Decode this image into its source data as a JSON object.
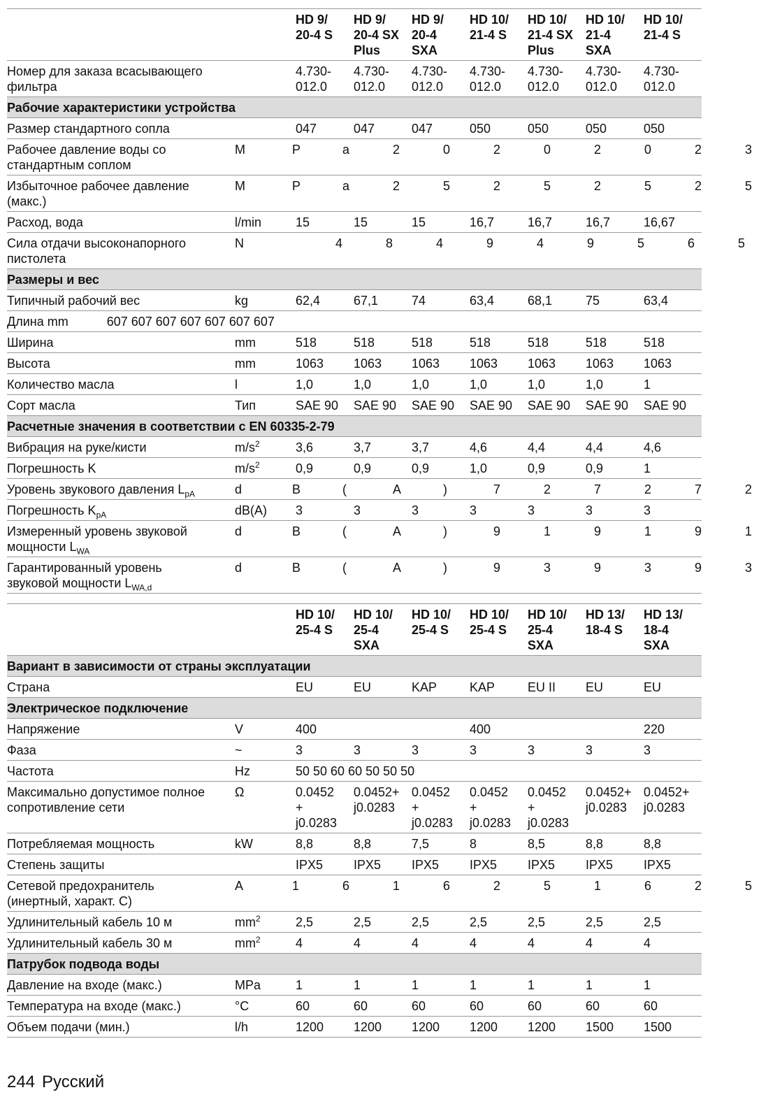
{
  "tables": [
    {
      "header": [
        "HD 9/\n20-4 S",
        "HD 9/\n20-4 SX\nPlus",
        "HD 9/\n20-4\nSXA",
        "HD 10/\n21-4 S",
        "HD 10/\n21-4 SX\nPlus",
        "HD 10/\n21-4\nSXA",
        "HD 10/\n21-4 S"
      ],
      "rows": [
        {
          "label": "Номер для заказа всасывающего\nфильтра",
          "values": [
            "4.730-\n012.0",
            "4.730-\n012.0",
            "4.730-\n012.0",
            "4.730-\n012.0",
            "4.730-\n012.0",
            "4.730-\n012.0",
            "4.730-\n012.0"
          ]
        },
        {
          "section": "Рабочие характеристики устройства"
        },
        {
          "label": "Размер стандартного сопла",
          "values": [
            "047",
            "047",
            "047",
            "050",
            "050",
            "050",
            "050"
          ]
        },
        {
          "label": "Рабочее давление воды со\nстандартным соплом",
          "spread": [
            "M",
            "P",
            "a",
            "2",
            "0",
            "2",
            "0",
            "2",
            "0",
            "2",
            "3"
          ]
        },
        {
          "label": "Избыточное рабочее давление\n(макс.)",
          "spread": [
            "M",
            "P",
            "a",
            "2",
            "5",
            "2",
            "5",
            "2",
            "5",
            "2",
            "5"
          ]
        },
        {
          "label": "Расход, вода",
          "unit": "l/min",
          "values": [
            "15",
            "15",
            "15",
            "16,7",
            "16,7",
            "16,7",
            "16,67"
          ]
        },
        {
          "label": "Сила отдачи высоконапорного\nпистолета",
          "spread": [
            "N",
            "4",
            "8",
            "4",
            "9",
            "4",
            "9",
            "5",
            "6",
            "5"
          ]
        },
        {
          "section": "Размеры и вес"
        },
        {
          "label": "Типичный рабочий вес",
          "unit": "kg",
          "values": [
            "62,4",
            "67,1",
            "74",
            "63,4",
            "68,1",
            "75",
            "63,4"
          ]
        },
        {
          "label": "Длина  mm",
          "run": "607 607 607 607 607 607 607"
        },
        {
          "label": "Ширина",
          "unit": "mm",
          "values": [
            "518",
            "518",
            "518",
            "518",
            "518",
            "518",
            "518"
          ]
        },
        {
          "label": "Высота",
          "unit": "mm",
          "values": [
            "1063",
            "1063",
            "1063",
            "1063",
            "1063",
            "1063",
            "1063"
          ]
        },
        {
          "label": "Количество масла",
          "unit": "l",
          "values": [
            "1,0",
            "1,0",
            "1,0",
            "1,0",
            "1,0",
            "1,0",
            "1"
          ]
        },
        {
          "label": "Сорт масла",
          "unit": "Тип",
          "values": [
            "SAE 90",
            "SAE 90",
            "SAE 90",
            "SAE 90",
            "SAE 90",
            "SAE 90",
            "SAE 90"
          ]
        },
        {
          "section": "Расчетные значения в соответствии с EN 60335-2-79"
        },
        {
          "label": "Вибрация на руке/кисти",
          "unit": "m/s",
          "unit_sup": "2",
          "values": [
            "3,6",
            "3,7",
            "3,7",
            "4,6",
            "4,4",
            "4,4",
            "4,6"
          ]
        },
        {
          "label": "Погрешность K",
          "unit": "m/s",
          "unit_sup": "2",
          "values": [
            "0,9",
            "0,9",
            "0,9",
            "1,0",
            "0,9",
            "0,9",
            "1"
          ]
        },
        {
          "label": "Уровень звукового давления L",
          "label_sub": "pA",
          "spread": [
            "d",
            "B",
            "(",
            "A",
            ")",
            "7",
            "2",
            "7",
            "2",
            "7",
            "2"
          ]
        },
        {
          "label": "Погрешность K",
          "label_sub": "pA",
          "unit": "dB(A)",
          "values": [
            "3",
            "3",
            "3",
            "3",
            "3",
            "3",
            "3"
          ]
        },
        {
          "label": "Измеренный уровень звуковой\nмощности L",
          "label_sub": "WA",
          "spread": [
            "d",
            "B",
            "(",
            "A",
            ")",
            "9",
            "1",
            "9",
            "1",
            "9",
            "1"
          ]
        },
        {
          "label": "Гарантированный уровень\nзвуковой мощности L",
          "label_sub": "WA,d",
          "spread": [
            "d",
            "B",
            "(",
            "A",
            ")",
            "9",
            "3",
            "9",
            "3",
            "9",
            "3"
          ]
        }
      ]
    },
    {
      "header": [
        "HD 10/\n25-4 S",
        "HD 10/\n25-4\nSXA",
        "HD 10/\n25-4 S",
        "HD 10/\n25-4 S",
        "HD 10/\n25-4\nSXA",
        "HD 13/\n18-4 S",
        "HD 13/\n18-4\nSXA"
      ],
      "rows": [
        {
          "section": "Вариант в зависимости от страны эксплуатации"
        },
        {
          "label": "Страна",
          "values": [
            "EU",
            "EU",
            "KAP",
            "KAP",
            "EU II",
            "EU",
            "EU"
          ]
        },
        {
          "section": "Электрическое подключение"
        },
        {
          "label": "Напряжение",
          "unit": "V",
          "values": [
            "400",
            null,
            null,
            "400",
            null,
            null,
            "220"
          ]
        },
        {
          "label": "Фаза",
          "unit": "~",
          "values": [
            "3",
            "3",
            "3",
            "3",
            "3",
            "3",
            "3"
          ]
        },
        {
          "label": "Частота",
          "unit": "Hz",
          "run": "50 50 60 60 50 50 50"
        },
        {
          "label": "Максимально допустимое полное\nсопротивление сети",
          "unit": "Ω",
          "values": [
            "0.0452\n+\nj0.0283",
            "0.0452+\nj0.0283",
            "0.0452\n+\nj0.0283",
            "0.0452\n+\nj0.0283",
            "0.0452\n+\nj0.0283",
            "0.0452+\nj0.0283",
            "0.0452+\nj0.0283"
          ]
        },
        {
          "label": "Потребляемая мощность",
          "unit": "kW",
          "values": [
            "8,8",
            "8,8",
            "7,5",
            "8",
            "8,5",
            "8,8",
            "8,8"
          ]
        },
        {
          "label": "Степень защиты",
          "values": [
            "IPX5",
            "IPX5",
            "IPX5",
            "IPX5",
            "IPX5",
            "IPX5",
            "IPX5"
          ]
        },
        {
          "label": "Сетевой предохранитель\n(инертный, характ. С)",
          "spread": [
            "A",
            "1",
            "6",
            "1",
            "6",
            "2",
            "5",
            "1",
            "6",
            "2",
            "5"
          ]
        },
        {
          "label": "Удлинительный кабель 10 м",
          "unit": "mm",
          "unit_sup": "2",
          "values": [
            "2,5",
            "2,5",
            "2,5",
            "2,5",
            "2,5",
            "2,5",
            "2,5"
          ]
        },
        {
          "label": "Удлинительный кабель 30 м",
          "unit": "mm",
          "unit_sup": "2",
          "values": [
            "4",
            "4",
            "4",
            "4",
            "4",
            "4",
            "4"
          ]
        },
        {
          "section": "Патрубок подвода воды"
        },
        {
          "label": "Давление на входе (макс.)",
          "unit": "MPa",
          "values": [
            "1",
            "1",
            "1",
            "1",
            "1",
            "1",
            "1"
          ]
        },
        {
          "label": "Температура на входе (макс.)",
          "unit": "°C",
          "values": [
            "60",
            "60",
            "60",
            "60",
            "60",
            "60",
            "60"
          ]
        },
        {
          "label": "Объем подачи (мин.)",
          "unit": "l/h",
          "values": [
            "1200",
            "1200",
            "1200",
            "1200",
            "1200",
            "1500",
            "1500"
          ]
        }
      ]
    }
  ],
  "footer": {
    "page": "244",
    "language": "Русский"
  }
}
